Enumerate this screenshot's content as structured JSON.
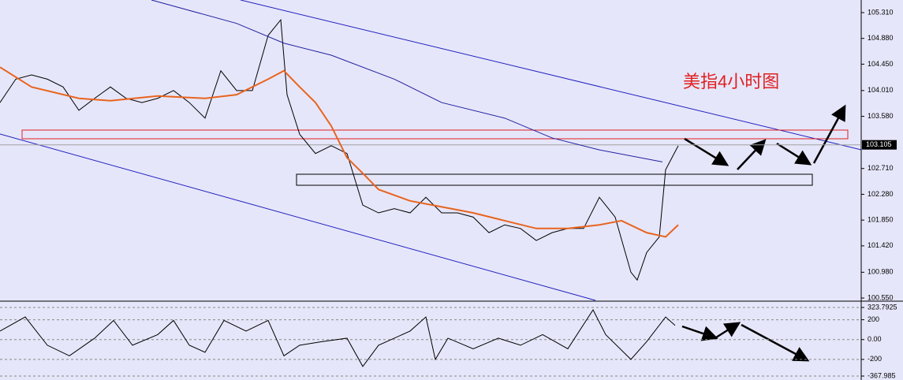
{
  "chart_data": [
    {
      "type": "line",
      "annotation": "美指4小时图",
      "last_price": 103.105,
      "xlim": [
        0,
        273
      ],
      "ylim": [
        100.511,
        105.52
      ],
      "grid": false,
      "yticks": [
        {
          "value": 105.31,
          "label": "105.310"
        },
        {
          "value": 104.88,
          "label": "104.880"
        },
        {
          "value": 104.45,
          "label": "104.450"
        },
        {
          "value": 104.01,
          "label": "104.010"
        },
        {
          "value": 103.58,
          "label": "103.580"
        },
        {
          "value": 102.71,
          "label": "102.710"
        },
        {
          "value": 102.28,
          "label": "102.280"
        },
        {
          "value": 101.85,
          "label": "101.850"
        },
        {
          "value": 101.42,
          "label": "101.420"
        },
        {
          "value": 100.98,
          "label": "100.980"
        },
        {
          "value": 100.55,
          "label": "100.550"
        }
      ],
      "series": [
        {
          "color": "#000000",
          "x": [
            0,
            5,
            10,
            15,
            20,
            25,
            30,
            35,
            40,
            45,
            50,
            55,
            60,
            65,
            70,
            75,
            80,
            85,
            89,
            91,
            95,
            100,
            105,
            110,
            115,
            120,
            125,
            130,
            135,
            140,
            145,
            150,
            155,
            160,
            165,
            170,
            175,
            180,
            185,
            190,
            195,
            200,
            202,
            205,
            209,
            211,
            215
          ],
          "values": [
            103.81,
            104.2,
            104.27,
            104.2,
            104.07,
            103.68,
            103.88,
            104.07,
            103.88,
            103.81,
            103.88,
            104.01,
            103.81,
            103.55,
            104.34,
            104.01,
            104.01,
            104.93,
            105.19,
            103.94,
            103.28,
            102.96,
            103.09,
            102.96,
            102.1,
            101.97,
            102.04,
            101.97,
            102.23,
            101.97,
            101.97,
            101.9,
            101.64,
            101.77,
            101.71,
            101.51,
            101.64,
            101.71,
            101.71,
            102.23,
            101.9,
            100.98,
            100.85,
            101.31,
            101.57,
            102.69,
            103.09
          ]
        },
        {
          "color": "#e8641e",
          "x": [
            0,
            10,
            25,
            35,
            50,
            65,
            75,
            85,
            90,
            95,
            100,
            105,
            110,
            115,
            120,
            130,
            140,
            150,
            160,
            170,
            180,
            190,
            197,
            205,
            211,
            215
          ],
          "values": [
            104.4,
            104.07,
            103.88,
            103.84,
            103.92,
            103.88,
            103.94,
            104.2,
            104.34,
            104.07,
            103.81,
            103.42,
            102.89,
            102.63,
            102.36,
            102.17,
            102.07,
            101.97,
            101.84,
            101.71,
            101.71,
            101.77,
            101.84,
            101.64,
            101.57,
            101.77
          ]
        },
        {
          "color": "#2020a0",
          "x": [
            48,
            75,
            90,
            105,
            125,
            140,
            160,
            175,
            190,
            210
          ],
          "values": [
            105.52,
            105.13,
            104.8,
            104.6,
            104.2,
            103.81,
            103.55,
            103.22,
            103.02,
            102.82
          ]
        }
      ]
    },
    {
      "type": "line",
      "xlim": [
        0,
        273
      ],
      "ylim": [
        -367.985,
        323.7925
      ],
      "grid": true,
      "yticks": [
        {
          "value": 323.7925,
          "label": "323.7925"
        },
        200,
        {
          "value": 0,
          "label": "0.00"
        },
        -200,
        {
          "value": -367.985,
          "label": "-367.985"
        }
      ],
      "series": [
        {
          "color": "#000000",
          "x": [
            0,
            8,
            15,
            22,
            30,
            36,
            42,
            50,
            55,
            60,
            65,
            71,
            78,
            85,
            90,
            95,
            102,
            110,
            115,
            120,
            125,
            130,
            135,
            138,
            142,
            150,
            158,
            165,
            172,
            180,
            188,
            192,
            200,
            205,
            211,
            214
          ],
          "values": [
            86,
            228,
            -57,
            -164,
            14,
            193,
            -57,
            50,
            193,
            -57,
            -128,
            193,
            86,
            193,
            -164,
            -57,
            -21,
            14,
            -271,
            -57,
            14,
            86,
            228,
            -200,
            14,
            -93,
            14,
            -57,
            50,
            -93,
            300,
            50,
            -200,
            -21,
            228,
            143
          ]
        }
      ]
    }
  ]
}
